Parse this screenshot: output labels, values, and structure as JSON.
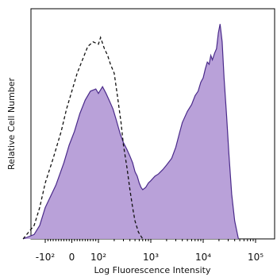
{
  "chart_data": {
    "type": "area",
    "title": "",
    "xlabel": "Log Fluorescence Intensity",
    "ylabel": "Relative Cell Number",
    "x_scale": "biexponential",
    "xlim": [
      -300,
      100000
    ],
    "ylim": [
      0,
      100
    ],
    "grid": false,
    "x_ticks": [
      {
        "value": -100,
        "label": "-10²"
      },
      {
        "value": 0,
        "label": "0"
      },
      {
        "value": 100,
        "label": "10²"
      },
      {
        "value": 1000,
        "label": "10³"
      },
      {
        "value": 10000,
        "label": "10⁴"
      },
      {
        "value": 100000,
        "label": "10⁵"
      }
    ],
    "series": [
      {
        "style": "filled",
        "color": "#b9a1d9",
        "edge_color": "#4a2a8a",
        "points": [
          [
            -300,
            0
          ],
          [
            -200,
            2
          ],
          [
            -150,
            6
          ],
          [
            -100,
            14
          ],
          [
            -60,
            24
          ],
          [
            -30,
            34
          ],
          [
            -10,
            42
          ],
          [
            10,
            48
          ],
          [
            30,
            56
          ],
          [
            50,
            62
          ],
          [
            70,
            66
          ],
          [
            90,
            67
          ],
          [
            100,
            65
          ],
          [
            120,
            68
          ],
          [
            140,
            65
          ],
          [
            160,
            62
          ],
          [
            190,
            58
          ],
          [
            220,
            53
          ],
          [
            260,
            47
          ],
          [
            300,
            43
          ],
          [
            350,
            40
          ],
          [
            400,
            37
          ],
          [
            450,
            34
          ],
          [
            500,
            30
          ],
          [
            550,
            28
          ],
          [
            600,
            25
          ],
          [
            650,
            23
          ],
          [
            700,
            22
          ],
          [
            800,
            23
          ],
          [
            900,
            25
          ],
          [
            1000,
            26
          ],
          [
            1200,
            28
          ],
          [
            1400,
            29
          ],
          [
            1700,
            31
          ],
          [
            2000,
            33
          ],
          [
            2500,
            36
          ],
          [
            3000,
            41
          ],
          [
            3500,
            47
          ],
          [
            4000,
            52
          ],
          [
            5000,
            57
          ],
          [
            6000,
            60
          ],
          [
            7000,
            64
          ],
          [
            8000,
            66
          ],
          [
            9000,
            70
          ],
          [
            10000,
            72
          ],
          [
            11000,
            76
          ],
          [
            12000,
            79
          ],
          [
            13000,
            78
          ],
          [
            14000,
            82
          ],
          [
            15000,
            80
          ],
          [
            16500,
            83
          ],
          [
            18000,
            85
          ],
          [
            19500,
            92
          ],
          [
            21000,
            96
          ],
          [
            23000,
            88
          ],
          [
            25000,
            72
          ],
          [
            28000,
            55
          ],
          [
            31000,
            38
          ],
          [
            35000,
            20
          ],
          [
            40000,
            8
          ],
          [
            47000,
            0
          ]
        ]
      },
      {
        "style": "dashed",
        "color": "#111111",
        "points": [
          [
            -300,
            0
          ],
          [
            -200,
            6
          ],
          [
            -150,
            14
          ],
          [
            -100,
            25
          ],
          [
            -70,
            36
          ],
          [
            -40,
            48
          ],
          [
            -20,
            58
          ],
          [
            0,
            66
          ],
          [
            20,
            74
          ],
          [
            40,
            80
          ],
          [
            60,
            86
          ],
          [
            80,
            88
          ],
          [
            100,
            87
          ],
          [
            110,
            90
          ],
          [
            130,
            85
          ],
          [
            150,
            82
          ],
          [
            170,
            78
          ],
          [
            200,
            74
          ],
          [
            230,
            64
          ],
          [
            270,
            52
          ],
          [
            300,
            42
          ],
          [
            350,
            32
          ],
          [
            400,
            22
          ],
          [
            450,
            14
          ],
          [
            500,
            8
          ],
          [
            580,
            3
          ],
          [
            700,
            0
          ]
        ]
      }
    ]
  }
}
